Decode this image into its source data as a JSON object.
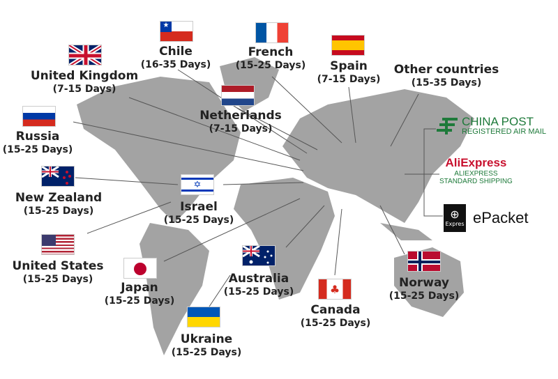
{
  "destinations": [
    {
      "id": "chile",
      "name": "Chile",
      "days": "(16-35 Days)"
    },
    {
      "id": "french",
      "name": "French",
      "days": "(15-25 Days)"
    },
    {
      "id": "spain",
      "name": "Spain",
      "days": "(7-15 Days)"
    },
    {
      "id": "other",
      "name": "Other countries",
      "days": "(15-35 Days)"
    },
    {
      "id": "uk",
      "name": "United Kingdom",
      "days": "(7-15 Days)"
    },
    {
      "id": "netherlands",
      "name": "Netherlands",
      "days": "(7-15 Days)"
    },
    {
      "id": "russia",
      "name": "Russia",
      "days": "(15-25 Days)"
    },
    {
      "id": "nz",
      "name": "New Zealand",
      "days": "(15-25 Days)"
    },
    {
      "id": "israel",
      "name": "Israel",
      "days": "(15-25 Days)"
    },
    {
      "id": "us",
      "name": "United States",
      "days": "(15-25 Days)"
    },
    {
      "id": "japan",
      "name": "Japan",
      "days": "(15-25 Days)"
    },
    {
      "id": "australia",
      "name": "Australia",
      "days": "(15-25 Days)"
    },
    {
      "id": "canada",
      "name": "Canada",
      "days": "(15-25 Days)"
    },
    {
      "id": "norway",
      "name": "Norway",
      "days": "(15-25 Days)"
    },
    {
      "id": "ukraine",
      "name": "Ukraine",
      "days": "(15-25 Days)"
    }
  ],
  "carriers": {
    "china_post": {
      "title": "CHINA POST",
      "subtitle": "REGISTERED AIR MAIL",
      "color": "#1e7a3a"
    },
    "aliexpress": {
      "logo": "AliExpress",
      "line1": "ALIEXPRESS",
      "line2": "STANDARD SHIPPING",
      "color": "#1e7a3a",
      "logo_color": "#c8102e"
    },
    "epacket": {
      "badge": "Expres",
      "title": "ePacket"
    }
  },
  "map_color": "#9e9e9e"
}
